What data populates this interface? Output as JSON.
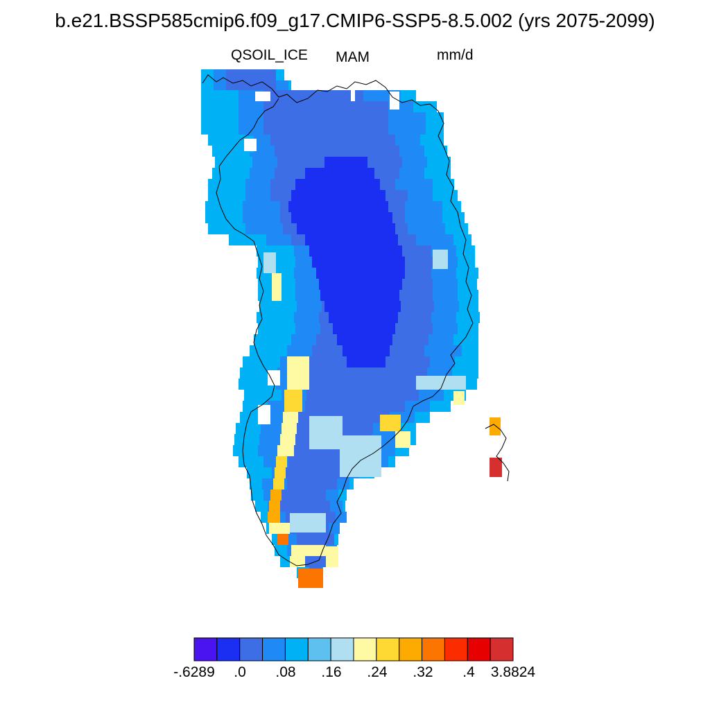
{
  "title": "b.e21.BSSP585cmip6.f09_g17.CMIP6-SSP5-8.5.002 (yrs 2075-2099)",
  "variable": "QSOIL_ICE",
  "season": "MAM",
  "units": "mm/d",
  "colorbar": {
    "colors": [
      "#4a14f0",
      "#1a2ff2",
      "#3d6ee6",
      "#1f8af5",
      "#00b2f5",
      "#5ec0ef",
      "#b0dff2",
      "#fef9a3",
      "#fed934",
      "#fdab00",
      "#fb7500",
      "#fb2d00",
      "#e60000",
      "#d62f2f"
    ],
    "labels": [
      "-.6289",
      ".0",
      ".08",
      ".16",
      ".24",
      ".32",
      ".4",
      "3.8824"
    ]
  },
  "icons": {
    "map": "greenland-contour-map",
    "colorbar": "color-scale-bar"
  }
}
